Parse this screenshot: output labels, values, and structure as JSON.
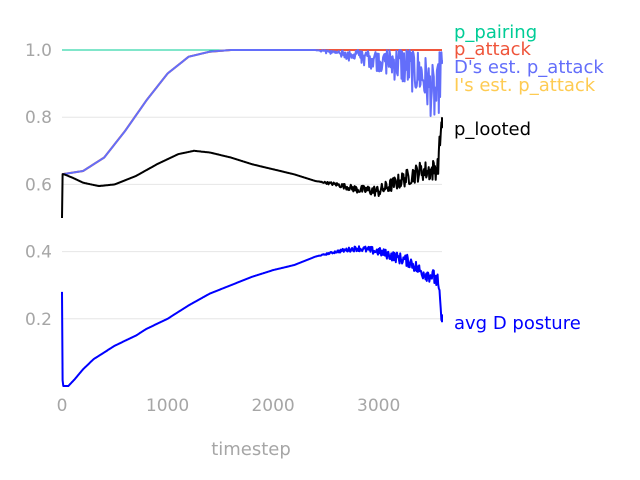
{
  "chart_data": {
    "type": "line",
    "title": "",
    "xlabel": "timestep",
    "ylabel": "",
    "xlim": [
      0,
      3600
    ],
    "ylim": [
      0.0,
      1.0
    ],
    "grid": "horizontal",
    "x_ticks": [
      0,
      1000,
      2000,
      3000
    ],
    "x_tick_labels": [
      "0",
      "1000",
      "2000",
      "3000"
    ],
    "y_ticks": [
      0.2,
      0.4,
      0.6,
      0.8,
      1.0
    ],
    "y_tick_labels": [
      "0.2",
      "0.4",
      "0.6",
      "0.8",
      "1.0"
    ],
    "legend": "inline labels at right end of series",
    "series": [
      {
        "name": "p_pairing",
        "color": "#00cc96",
        "x": [
          0,
          3600
        ],
        "y": [
          1.0,
          1.0
        ]
      },
      {
        "name": "p_attack",
        "color": "#ef553b",
        "x": [
          0,
          200,
          400,
          600,
          800,
          1000,
          1200,
          1400,
          1600,
          2000,
          2400,
          3600
        ],
        "y": [
          0.63,
          0.64,
          0.68,
          0.76,
          0.85,
          0.93,
          0.98,
          0.995,
          1.0,
          1.0,
          1.0,
          1.0
        ]
      },
      {
        "name": "D's est. p_attack",
        "color": "#636efa",
        "noisy": true,
        "x": [
          0,
          200,
          400,
          600,
          800,
          1000,
          1200,
          1400,
          1600,
          2000,
          2400,
          2600,
          2800,
          3000,
          3200,
          3400,
          3500,
          3550,
          3600
        ],
        "y": [
          0.63,
          0.64,
          0.68,
          0.76,
          0.85,
          0.93,
          0.98,
          0.995,
          1.0,
          1.0,
          1.0,
          0.995,
          0.99,
          0.98,
          0.96,
          0.93,
          0.88,
          0.85,
          0.97
        ]
      },
      {
        "name": "I's est. p_attack",
        "color": "#fecb52",
        "x": [
          0,
          200,
          400,
          600,
          800,
          1000,
          1200,
          1400,
          1600,
          2000,
          2400,
          3600
        ],
        "y": [
          0.63,
          0.64,
          0.68,
          0.76,
          0.85,
          0.93,
          0.98,
          0.995,
          1.0,
          1.0,
          1.0,
          1.0
        ]
      },
      {
        "name": "p_looted",
        "color": "#000000",
        "noisy": true,
        "x": [
          0,
          5,
          20,
          100,
          200,
          350,
          500,
          700,
          900,
          1100,
          1250,
          1400,
          1600,
          1800,
          2000,
          2200,
          2400,
          2600,
          2800,
          3000,
          3200,
          3400,
          3500,
          3560,
          3600
        ],
        "y": [
          0.5,
          0.63,
          0.63,
          0.62,
          0.605,
          0.595,
          0.6,
          0.625,
          0.66,
          0.69,
          0.7,
          0.695,
          0.68,
          0.66,
          0.645,
          0.63,
          0.61,
          0.6,
          0.585,
          0.58,
          0.61,
          0.64,
          0.64,
          0.65,
          0.8
        ]
      },
      {
        "name": "avg D posture",
        "color": "#0000ff",
        "noisy": true,
        "x": [
          0,
          3,
          10,
          60,
          120,
          200,
          300,
          400,
          500,
          600,
          700,
          800,
          900,
          1000,
          1200,
          1400,
          1600,
          1800,
          2000,
          2200,
          2400,
          2600,
          2800,
          3000,
          3200,
          3300,
          3400,
          3500,
          3560,
          3600
        ],
        "y": [
          0.28,
          0.03,
          0.0,
          0.0,
          0.02,
          0.05,
          0.08,
          0.1,
          0.12,
          0.135,
          0.15,
          0.17,
          0.185,
          0.2,
          0.24,
          0.275,
          0.3,
          0.325,
          0.345,
          0.36,
          0.385,
          0.4,
          0.41,
          0.4,
          0.38,
          0.37,
          0.34,
          0.33,
          0.31,
          0.19
        ]
      }
    ]
  }
}
